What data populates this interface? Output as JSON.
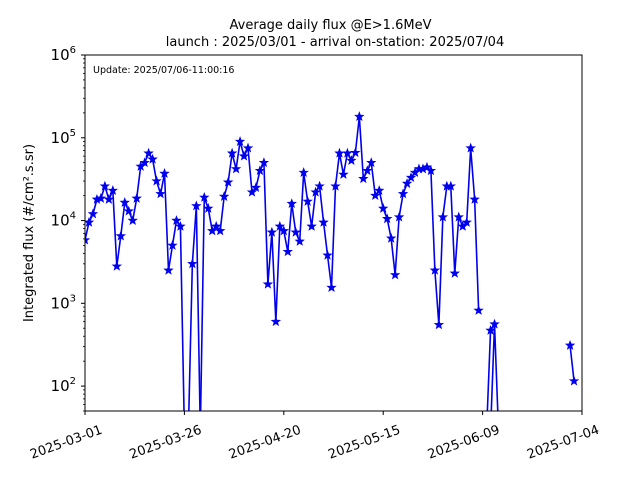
{
  "chart_data": {
    "type": "line",
    "title_line1": "Average daily flux @E>1.6MeV",
    "title_line2": "launch : 2025/03/01 - arrival on-station: 2025/07/04",
    "annotation": "Update: 2025/07/06-11:00:16",
    "ylabel": "Integrated flux (#/cm².s.sr)",
    "xlabel": "",
    "y_scale": "log",
    "ylim": [
      50,
      1000000
    ],
    "xlim": [
      "2025-03-01",
      "2025-07-04"
    ],
    "x_ticks": [
      "2025-03-01",
      "2025-03-26",
      "2025-04-20",
      "2025-05-15",
      "2025-06-09",
      "2025-07-04"
    ],
    "y_ticks": [
      {
        "value": 100,
        "label": "10",
        "exp": "2"
      },
      {
        "value": 1000,
        "label": "10",
        "exp": "3"
      },
      {
        "value": 10000,
        "label": "10",
        "exp": "4"
      },
      {
        "value": 100000,
        "label": "10",
        "exp": "5"
      },
      {
        "value": 1000000,
        "label": "10",
        "exp": "6"
      }
    ],
    "grid": false,
    "series_color": "#0000ee",
    "marker": "star",
    "series": [
      {
        "name": "",
        "x": [
          "2025-03-01",
          "2025-03-02",
          "2025-03-03",
          "2025-03-04",
          "2025-03-05",
          "2025-03-06",
          "2025-03-07",
          "2025-03-08",
          "2025-03-09",
          "2025-03-10",
          "2025-03-11",
          "2025-03-12",
          "2025-03-13",
          "2025-03-14",
          "2025-03-15",
          "2025-03-16",
          "2025-03-17",
          "2025-03-18",
          "2025-03-19",
          "2025-03-20",
          "2025-03-21",
          "2025-03-22",
          "2025-03-23",
          "2025-03-24",
          "2025-03-25",
          "2025-03-26",
          "2025-03-27",
          "2025-03-28",
          "2025-03-29",
          "2025-03-30",
          "2025-03-31",
          "2025-04-01",
          "2025-04-02",
          "2025-04-03",
          "2025-04-04",
          "2025-04-05",
          "2025-04-06",
          "2025-04-07",
          "2025-04-08",
          "2025-04-09",
          "2025-04-10",
          "2025-04-11",
          "2025-04-12",
          "2025-04-13",
          "2025-04-14",
          "2025-04-15",
          "2025-04-16",
          "2025-04-17",
          "2025-04-18",
          "2025-04-19",
          "2025-04-20",
          "2025-04-21",
          "2025-04-22",
          "2025-04-23",
          "2025-04-24",
          "2025-04-25",
          "2025-04-26",
          "2025-04-27",
          "2025-04-28",
          "2025-04-29",
          "2025-04-30",
          "2025-05-01",
          "2025-05-02",
          "2025-05-03",
          "2025-05-04",
          "2025-05-05",
          "2025-05-06",
          "2025-05-07",
          "2025-05-08",
          "2025-05-09",
          "2025-05-10",
          "2025-05-11",
          "2025-05-12",
          "2025-05-13",
          "2025-05-14",
          "2025-05-15",
          "2025-05-16",
          "2025-05-17",
          "2025-05-18",
          "2025-05-19",
          "2025-05-20",
          "2025-05-21",
          "2025-05-22",
          "2025-05-23",
          "2025-05-24",
          "2025-05-25",
          "2025-05-26",
          "2025-05-27",
          "2025-05-28",
          "2025-05-29",
          "2025-05-30",
          "2025-05-31",
          "2025-06-01",
          "2025-06-02",
          "2025-06-03",
          "2025-06-04",
          "2025-06-05",
          "2025-06-06",
          "2025-06-07",
          "2025-06-08",
          "2025-06-09",
          "2025-06-10",
          "2025-06-11",
          "2025-06-12",
          "2025-06-13",
          "2025-06-14",
          "2025-06-15",
          "2025-06-16",
          "2025-06-17",
          "2025-06-18",
          "2025-06-19",
          "2025-06-20",
          "2025-06-21",
          "2025-06-22",
          "2025-06-23",
          "2025-06-24",
          "2025-06-25",
          "2025-06-26",
          "2025-06-27",
          "2025-06-28",
          "2025-06-29",
          "2025-06-30",
          "2025-07-01",
          "2025-07-02"
        ],
        "values": [
          5800,
          9500,
          12000,
          18000,
          18500,
          26000,
          18000,
          23000,
          2800,
          6500,
          16500,
          13000,
          10000,
          18500,
          45000,
          50000,
          65000,
          55000,
          30000,
          21000,
          37000,
          2500,
          5000,
          10000,
          8500,
          null,
          null,
          3000,
          15000,
          null,
          19000,
          14000,
          7500,
          8500,
          7500,
          19500,
          29000,
          65000,
          42000,
          90000,
          60000,
          75000,
          22000,
          25000,
          40000,
          50000,
          1700,
          7200,
          600,
          8500,
          7500,
          4200,
          16000,
          7200,
          5600,
          38000,
          17000,
          8500,
          22000,
          26000,
          9500,
          3800,
          1550,
          26000,
          65000,
          36000,
          65000,
          53000,
          66000,
          180000,
          32000,
          40000,
          50000,
          20000,
          23000,
          14000,
          10500,
          6100,
          2200,
          11000,
          21000,
          28000,
          33000,
          38000,
          42000,
          42000,
          44000,
          40000,
          2500,
          550,
          11000,
          26000,
          26000,
          2300,
          11000,
          8500,
          9500,
          75000,
          18000,
          820,
          null,
          null,
          470,
          560,
          null,
          null,
          null,
          null,
          null,
          null,
          null,
          null,
          null,
          null,
          null,
          null,
          null,
          null,
          null,
          null,
          null,
          null,
          310,
          115
        ]
      }
    ],
    "drops_below_axis": [
      "2025-03-26",
      "2025-03-27",
      "2025-03-30",
      "2025-06-10",
      "2025-06-11",
      "2025-06-13"
    ]
  }
}
